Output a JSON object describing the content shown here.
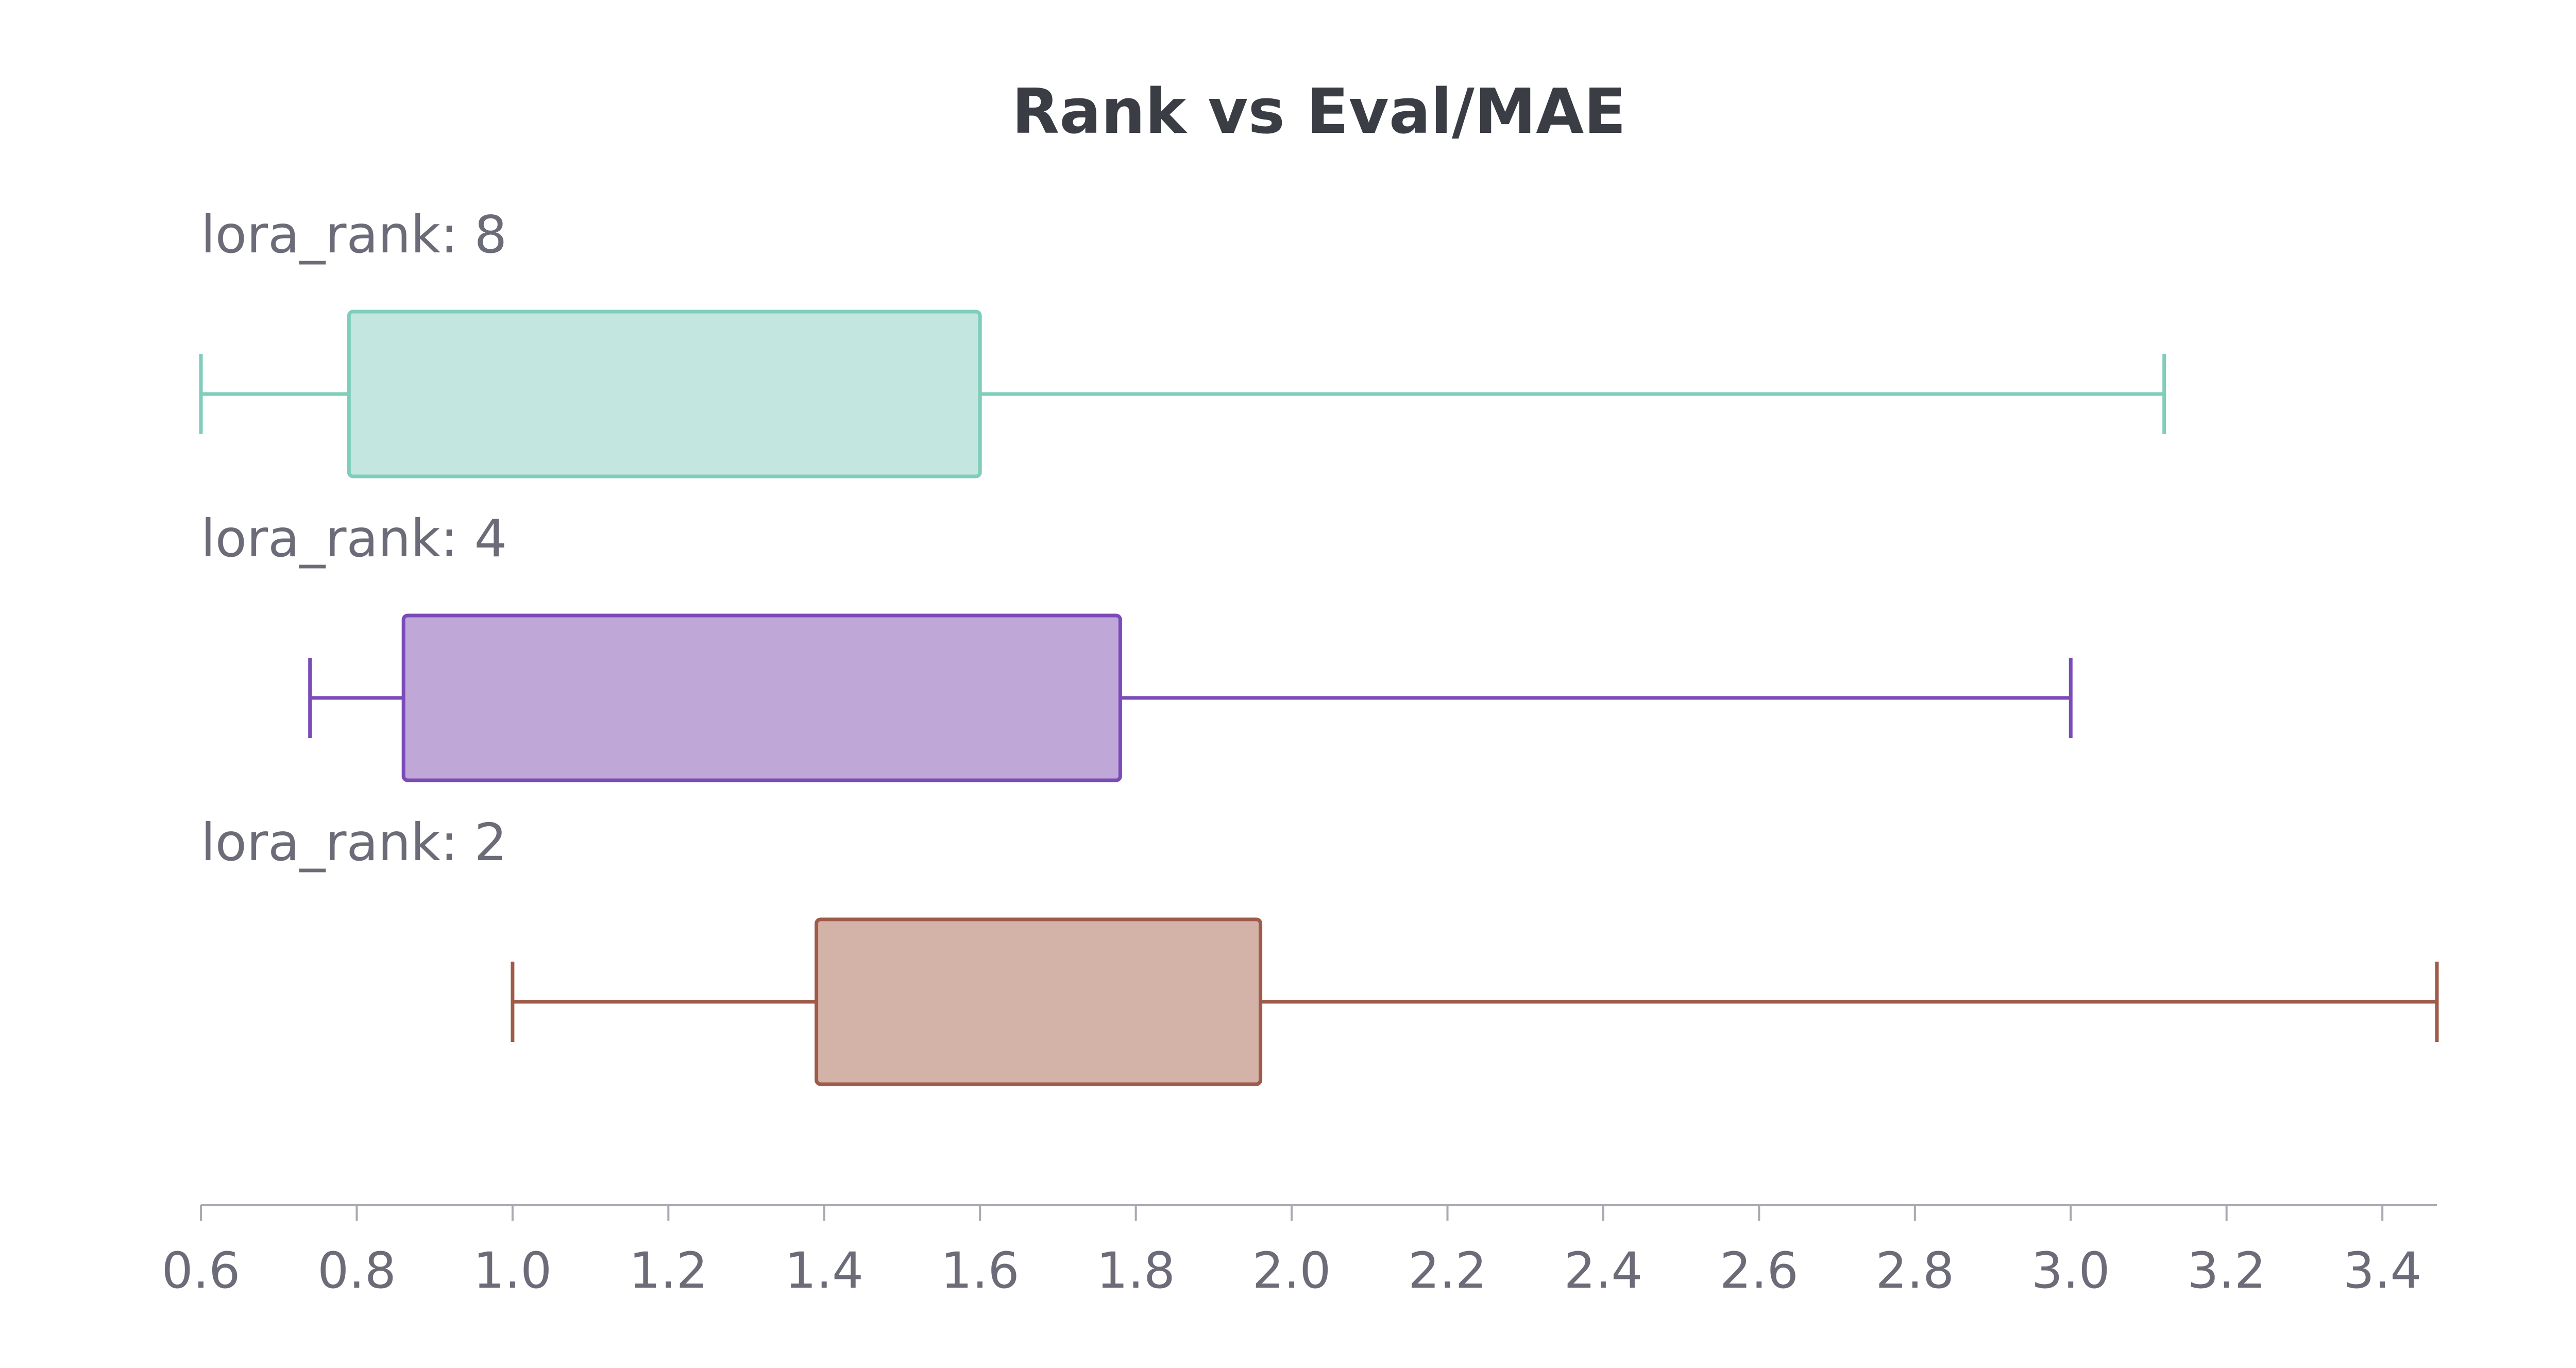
{
  "chart_data": {
    "type": "box",
    "orientation": "horizontal",
    "title": "Rank vs Eval/MAE",
    "xlabel": "",
    "ylabel": "",
    "xlim": [
      0.6,
      3.47
    ],
    "xticks": [
      0.6,
      0.8,
      1.0,
      1.2,
      1.4,
      1.6,
      1.8,
      2.0,
      2.2,
      2.4,
      2.6,
      2.8,
      3.0,
      3.2,
      3.4
    ],
    "xtick_labels": [
      "0.6",
      "0.8",
      "1.0",
      "1.2",
      "1.4",
      "1.6",
      "1.8",
      "2.0",
      "2.2",
      "2.4",
      "2.6",
      "2.8",
      "3.0",
      "3.2",
      "3.4"
    ],
    "grid": false,
    "legend": "none",
    "series": [
      {
        "name": "lora_rank: 8",
        "stroke": "#7fcdbb",
        "fill": "#c3e7e0",
        "min": 0.6,
        "q1": 0.79,
        "q3": 1.6,
        "max": 3.12
      },
      {
        "name": "lora_rank: 4",
        "stroke": "#7b4bb8",
        "fill": "#bfa7d8",
        "min": 0.74,
        "q1": 0.86,
        "q3": 1.78,
        "max": 3.0
      },
      {
        "name": "lora_rank: 2",
        "stroke": "#a05a4a",
        "fill": "#d3b3a8",
        "min": 1.0,
        "q1": 1.39,
        "q3": 1.96,
        "max": 3.47
      }
    ]
  }
}
